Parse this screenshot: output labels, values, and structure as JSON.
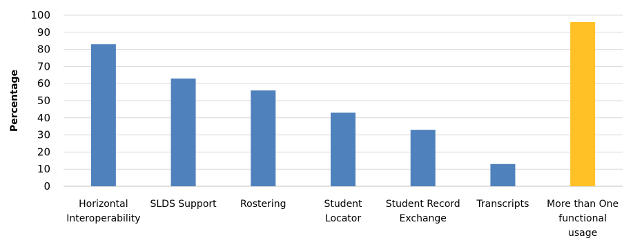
{
  "chart_data": {
    "type": "bar",
    "title": "",
    "xlabel": "",
    "ylabel": "Percentage",
    "ylim": [
      0,
      100
    ],
    "yticks": [
      0,
      10,
      20,
      30,
      40,
      50,
      60,
      70,
      80,
      90,
      100
    ],
    "grid": true,
    "legend": "none",
    "categories": [
      [
        "Horizontal",
        "Interoperability"
      ],
      [
        "SLDS Support"
      ],
      [
        "Rostering"
      ],
      [
        "Student",
        "Locator"
      ],
      [
        "Student Record",
        "Exchange"
      ],
      [
        "Transcripts"
      ],
      [
        "More than One",
        "functional",
        "usage"
      ]
    ],
    "values": [
      83,
      63,
      56,
      43,
      33,
      13,
      96
    ],
    "colors": [
      "#4f81bd",
      "#4f81bd",
      "#4f81bd",
      "#4f81bd",
      "#4f81bd",
      "#4f81bd",
      "#ffc125"
    ]
  }
}
